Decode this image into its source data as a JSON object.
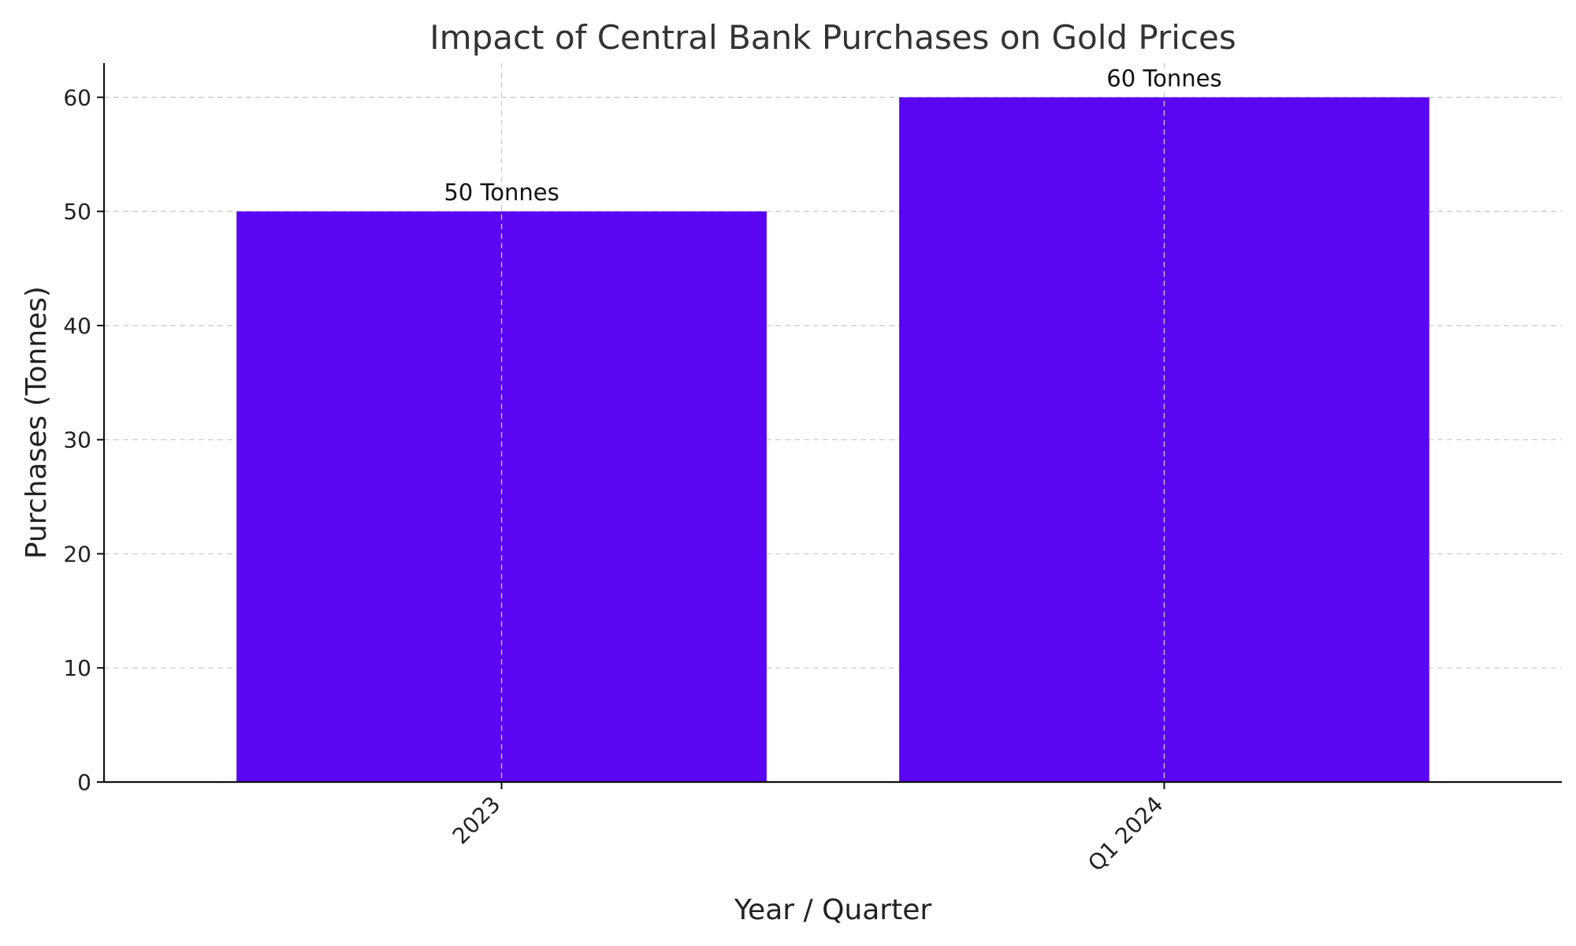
{
  "chart_data": {
    "type": "bar",
    "title": "Impact of Central Bank Purchases on Gold Prices",
    "xlabel": "Year / Quarter",
    "ylabel": "Purchases (Tonnes)",
    "categories": [
      "2023",
      "Q1 2024"
    ],
    "values": [
      50,
      60
    ],
    "data_labels": [
      "50 Tonnes",
      "60 Tonnes"
    ],
    "ylim": [
      0,
      63
    ],
    "yticks": [
      0,
      10,
      20,
      30,
      40,
      50,
      60
    ],
    "grid": true,
    "bar_color": "#5b06f5",
    "xtick_rotation": "45 degrees"
  }
}
